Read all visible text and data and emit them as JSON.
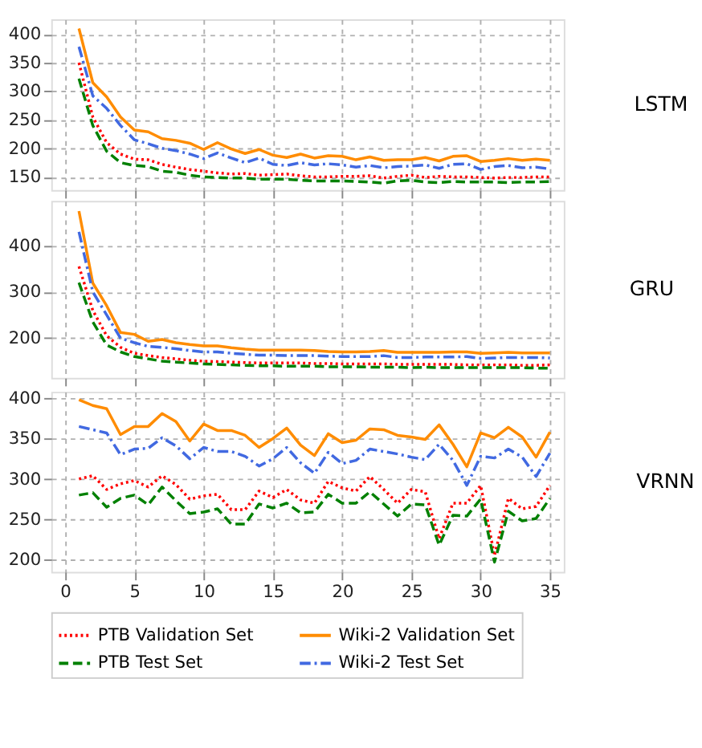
{
  "chart_data": [
    {
      "type": "line",
      "y2label": "LSTM",
      "x": [
        1,
        2,
        3,
        4,
        5,
        6,
        7,
        8,
        9,
        10,
        11,
        12,
        13,
        14,
        15,
        16,
        17,
        18,
        19,
        20,
        21,
        22,
        23,
        24,
        25,
        26,
        27,
        28,
        29,
        30,
        31,
        32,
        33,
        34,
        35
      ],
      "xlim": [
        -1,
        36
      ],
      "xticks": [
        0,
        5,
        10,
        15,
        20,
        25,
        30,
        35
      ],
      "ylim": [
        127,
        426
      ],
      "yticks": [
        150,
        200,
        250,
        300,
        350,
        400
      ],
      "grid": true,
      "tick_labels": "y",
      "series": [
        {
          "color": "#ff0000",
          "line_style": "dotted",
          "values": [
            350,
            255,
            210,
            190,
            181,
            180,
            172,
            167,
            163,
            160,
            157,
            155,
            156,
            153,
            154,
            155,
            152,
            150,
            150,
            151,
            151,
            152,
            148,
            151,
            153,
            149,
            151,
            150,
            150,
            149,
            148,
            149,
            149,
            150,
            150
          ]
        },
        {
          "color": "#ff8c00",
          "line_style": "solid",
          "values": [
            410,
            315,
            290,
            255,
            232,
            229,
            217,
            214,
            209,
            198,
            210,
            199,
            191,
            198,
            188,
            184,
            190,
            183,
            187,
            186,
            180,
            185,
            179,
            180,
            180,
            184,
            178,
            186,
            187,
            177,
            179,
            182,
            179,
            181,
            179
          ]
        },
        {
          "color": "#008000",
          "line_style": "dashed",
          "values": [
            322,
            240,
            195,
            175,
            170,
            168,
            160,
            158,
            153,
            150,
            149,
            148,
            148,
            146,
            146,
            146,
            144,
            143,
            143,
            143,
            142,
            141,
            139,
            143,
            144,
            141,
            140,
            142,
            141,
            141,
            141,
            140,
            141,
            141,
            142
          ]
        },
        {
          "color": "#4169e1",
          "line_style": "dashdot",
          "values": [
            378,
            292,
            270,
            240,
            215,
            208,
            200,
            196,
            190,
            182,
            192,
            183,
            175,
            183,
            172,
            170,
            175,
            171,
            173,
            171,
            167,
            170,
            166,
            168,
            169,
            171,
            165,
            172,
            173,
            163,
            168,
            170,
            166,
            167,
            164
          ]
        }
      ]
    },
    {
      "type": "line",
      "y2label": "GRU",
      "x": [
        1,
        2,
        3,
        4,
        5,
        6,
        7,
        8,
        9,
        10,
        11,
        12,
        13,
        14,
        15,
        16,
        17,
        18,
        19,
        20,
        21,
        22,
        23,
        24,
        25,
        26,
        27,
        28,
        29,
        30,
        31,
        32,
        33,
        34,
        35
      ],
      "xlim": [
        -1,
        36
      ],
      "xticks": [
        0,
        5,
        10,
        15,
        20,
        25,
        30,
        35
      ],
      "ylim": [
        114,
        497
      ],
      "yticks": [
        200,
        300,
        400
      ],
      "grid": true,
      "tick_labels": "y",
      "series": [
        {
          "color": "#ff0000",
          "line_style": "dotted",
          "values": [
            355,
            260,
            205,
            180,
            167,
            162,
            158,
            155,
            152,
            150,
            149,
            148,
            147,
            146,
            146,
            146,
            146,
            145,
            145,
            144,
            144,
            144,
            144,
            143,
            143,
            143,
            143,
            143,
            142,
            142,
            142,
            142,
            141,
            141,
            142
          ]
        },
        {
          "color": "#ff8c00",
          "line_style": "solid",
          "values": [
            475,
            319,
            270,
            212,
            208,
            193,
            197,
            190,
            186,
            183,
            183,
            179,
            176,
            174,
            174,
            174,
            174,
            173,
            171,
            170,
            170,
            171,
            173,
            169,
            169,
            169,
            169,
            170,
            170,
            167,
            168,
            169,
            168,
            168,
            168
          ]
        },
        {
          "color": "#008000",
          "line_style": "dashed",
          "values": [
            320,
            235,
            185,
            170,
            160,
            155,
            150,
            148,
            146,
            144,
            143,
            142,
            141,
            140,
            140,
            139,
            139,
            139,
            138,
            138,
            138,
            137,
            137,
            137,
            136,
            137,
            136,
            136,
            136,
            136,
            136,
            136,
            136,
            135,
            135
          ]
        },
        {
          "color": "#4169e1",
          "line_style": "dashdot",
          "values": [
            430,
            300,
            250,
            200,
            190,
            182,
            180,
            177,
            173,
            170,
            170,
            167,
            165,
            163,
            163,
            162,
            162,
            162,
            161,
            160,
            160,
            160,
            162,
            158,
            158,
            159,
            159,
            159,
            160,
            156,
            157,
            158,
            158,
            158,
            157
          ]
        }
      ]
    },
    {
      "type": "line",
      "y2label": "VRNN",
      "x": [
        1,
        2,
        3,
        4,
        5,
        6,
        7,
        8,
        9,
        10,
        11,
        12,
        13,
        14,
        15,
        16,
        17,
        18,
        19,
        20,
        21,
        22,
        23,
        24,
        25,
        26,
        27,
        28,
        29,
        30,
        31,
        32,
        33,
        34,
        35
      ],
      "xlim": [
        -1,
        36
      ],
      "xticks": [
        0,
        5,
        10,
        15,
        20,
        25,
        30,
        35
      ],
      "ylim": [
        185,
        408
      ],
      "yticks": [
        200,
        250,
        300,
        350,
        400
      ],
      "grid": true,
      "legend": "bottom",
      "series": [
        {
          "name": "PTB Validation Set",
          "color": "#ff0000",
          "line_style": "dotted",
          "values": [
            300,
            304,
            287,
            294,
            298,
            290,
            304,
            293,
            275,
            279,
            281,
            262,
            262,
            285,
            277,
            287,
            274,
            270,
            297,
            289,
            285,
            303,
            287,
            270,
            287,
            284,
            226,
            270,
            270,
            292,
            205,
            276,
            263,
            266,
            292
          ]
        },
        {
          "name": "Wiki-2 Validation Set",
          "color": "#ff8c00",
          "line_style": "solid",
          "values": [
            398,
            391,
            387,
            355,
            365,
            365,
            381,
            371,
            347,
            368,
            360,
            360,
            354,
            339,
            350,
            363,
            342,
            329,
            356,
            345,
            348,
            362,
            361,
            354,
            352,
            349,
            367,
            343,
            315,
            357,
            351,
            364,
            352,
            327,
            358
          ]
        },
        {
          "name": "PTB Test Set",
          "color": "#008000",
          "line_style": "dashed",
          "values": [
            280,
            283,
            265,
            276,
            280,
            268,
            290,
            273,
            257,
            259,
            263,
            244,
            244,
            269,
            264,
            270,
            258,
            259,
            281,
            270,
            270,
            284,
            269,
            254,
            269,
            268,
            218,
            255,
            254,
            275,
            197,
            260,
            248,
            251,
            276
          ]
        },
        {
          "name": "Wiki-2 Test Set",
          "color": "#4169e1",
          "line_style": "dashdot",
          "values": [
            365,
            361,
            357,
            330,
            337,
            338,
            351,
            341,
            325,
            339,
            334,
            334,
            328,
            316,
            325,
            339,
            320,
            307,
            333,
            319,
            323,
            337,
            334,
            331,
            327,
            324,
            343,
            323,
            292,
            328,
            326,
            337,
            327,
            303,
            332
          ]
        }
      ]
    }
  ]
}
